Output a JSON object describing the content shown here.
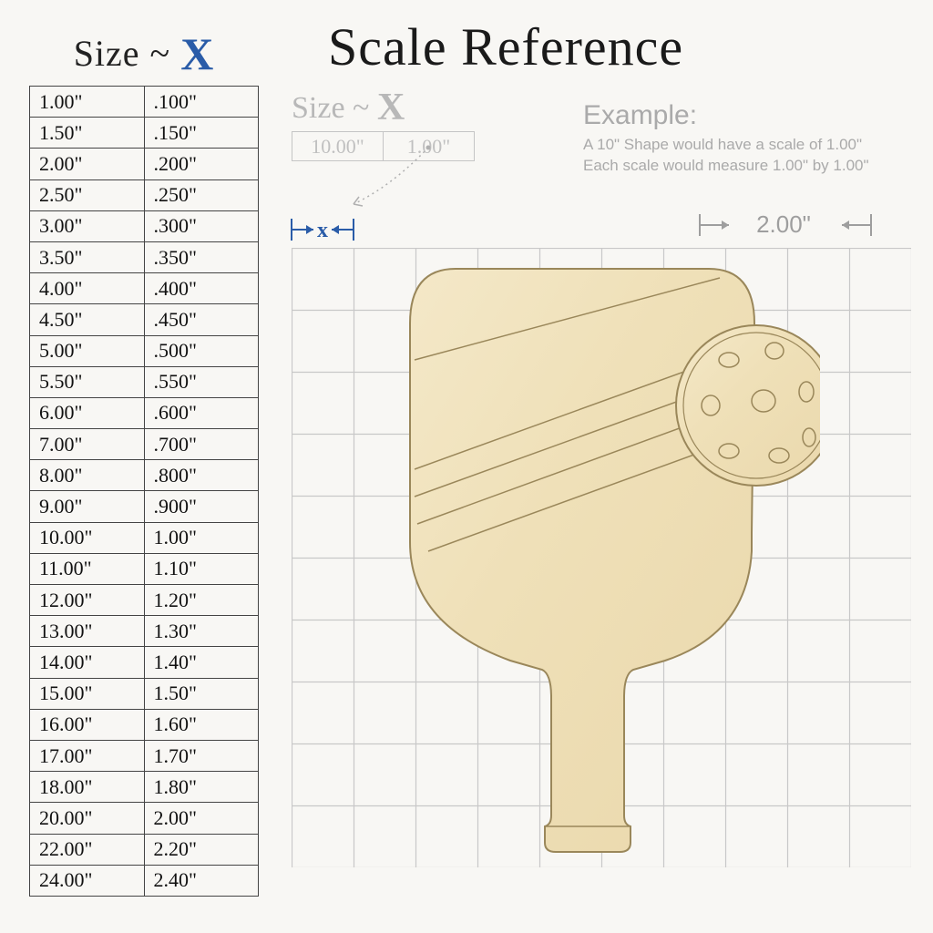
{
  "title": "Scale Reference",
  "size_header_prefix": "Size ~ ",
  "size_header_x": "X",
  "table": {
    "rows": [
      [
        "1.00\"",
        ".100\""
      ],
      [
        "1.50\"",
        ".150\""
      ],
      [
        "2.00\"",
        ".200\""
      ],
      [
        "2.50\"",
        ".250\""
      ],
      [
        "3.00\"",
        ".300\""
      ],
      [
        "3.50\"",
        ".350\""
      ],
      [
        "4.00\"",
        ".400\""
      ],
      [
        "4.50\"",
        ".450\""
      ],
      [
        "5.00\"",
        ".500\""
      ],
      [
        "5.50\"",
        ".550\""
      ],
      [
        "6.00\"",
        ".600\""
      ],
      [
        "7.00\"",
        ".700\""
      ],
      [
        "8.00\"",
        ".800\""
      ],
      [
        "9.00\"",
        ".900\""
      ],
      [
        "10.00\"",
        "1.00\""
      ],
      [
        "11.00\"",
        "1.10\""
      ],
      [
        "12.00\"",
        "1.20\""
      ],
      [
        "13.00\"",
        "1.30\""
      ],
      [
        "14.00\"",
        "1.40\""
      ],
      [
        "15.00\"",
        "1.50\""
      ],
      [
        "16.00\"",
        "1.60\""
      ],
      [
        "17.00\"",
        "1.70\""
      ],
      [
        "18.00\"",
        "1.80\""
      ],
      [
        "20.00\"",
        "2.00\""
      ],
      [
        "22.00\"",
        "2.20\""
      ],
      [
        "24.00\"",
        "2.40\""
      ]
    ],
    "border_color": "#444444",
    "text_color": "#111111",
    "font_size": 22
  },
  "mini_box": {
    "prefix": "Size ~ ",
    "x": "X",
    "cells": [
      "10.00\"",
      "1.00\""
    ],
    "color": "#b8b8b8"
  },
  "example": {
    "title": "Example:",
    "line1": "A 10\" Shape would have a scale of 1.00\"",
    "line2": "Each scale would measure 1.00\" by 1.00\"",
    "color": "#aaaaaa"
  },
  "x_marker": {
    "label": "x",
    "arrow_color": "#2a5ca8"
  },
  "two_marker": {
    "label": "2.00\"",
    "color": "#9e9e9e"
  },
  "grid": {
    "cols": 10,
    "rows": 10,
    "cell_size": 68,
    "line_color": "#c8c8c8",
    "background": "#f8f7f4"
  },
  "shape": {
    "type": "pickleball-paddle-with-ball",
    "fill": "#f2e4c0",
    "stroke": "#8b7a4f",
    "stroke_width": 2
  },
  "colors": {
    "page_bg": "#f8f7f4",
    "title_color": "#1a1a1a",
    "accent_blue": "#2a5ca8"
  }
}
